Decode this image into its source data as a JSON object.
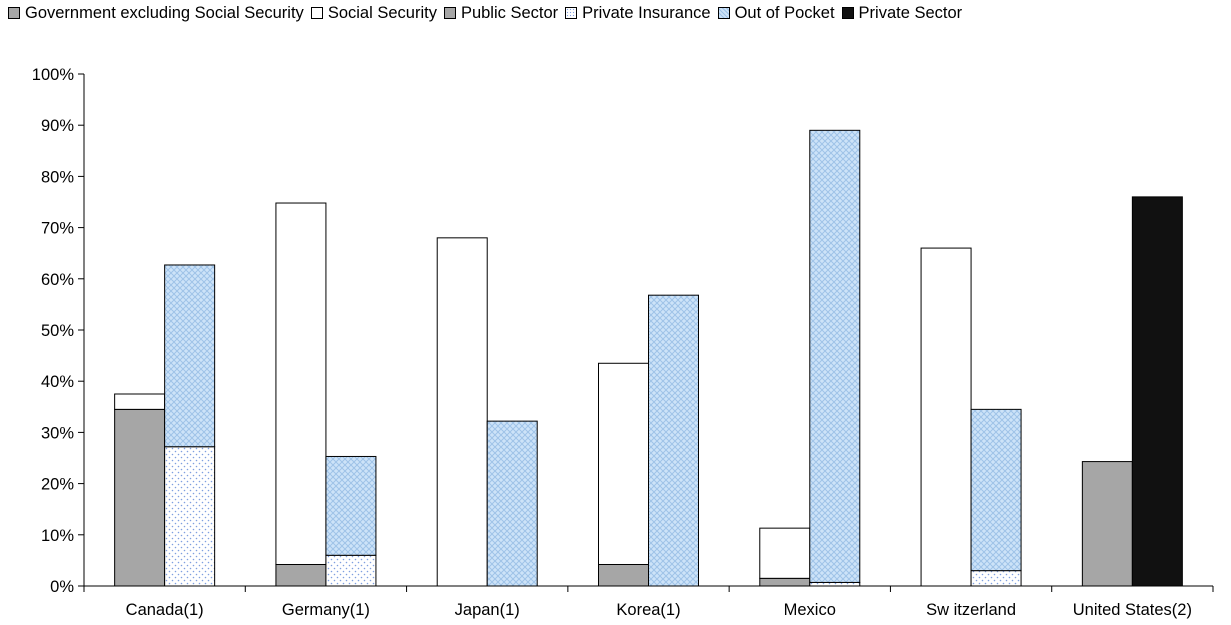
{
  "chart_data": {
    "type": "bar",
    "categories": [
      "Canada(1)",
      "Germany(1)",
      "Japan(1)",
      "Korea(1)",
      "Mexico",
      "Sw itzerland",
      "United States(2)"
    ],
    "ylim": [
      0,
      100
    ],
    "y_ticks": [
      "0%",
      "10%",
      "20%",
      "30%",
      "40%",
      "50%",
      "60%",
      "70%",
      "80%",
      "90%",
      "100%"
    ],
    "grid": false,
    "legend_position": "top",
    "series": [
      {
        "name": "Government excluding Social Security",
        "stack": "public",
        "color": "#a6a6a6",
        "pattern": "solid",
        "values": [
          34.5,
          0,
          0,
          0,
          0,
          0,
          0
        ]
      },
      {
        "name": "Social Security",
        "stack": "public",
        "color": "#ffffff",
        "pattern": "solid",
        "values": [
          3.0,
          4.2,
          68.0,
          4.2,
          1.5,
          66.0,
          0
        ]
      },
      {
        "name": "Public Sector",
        "stack": "public",
        "color": "#a6a6a6",
        "pattern": "solid",
        "values": [
          0,
          0,
          0,
          0,
          0,
          0,
          24.3
        ]
      },
      {
        "name": "Private Insurance",
        "stack": "private",
        "color": "#ffffff",
        "pattern": "dots",
        "values": [
          27.2,
          6.0,
          0,
          0,
          0.7,
          3.0,
          0
        ]
      },
      {
        "name": "Out of Pocket",
        "stack": "private",
        "color": "#cde3f8",
        "pattern": "crosshatch",
        "values": [
          35.5,
          19.3,
          32.2,
          56.8,
          88.3,
          31.5,
          0
        ]
      },
      {
        "name": "Private Sector",
        "stack": "private",
        "color": "#111111",
        "pattern": "solid",
        "values": [
          0,
          0,
          0,
          0,
          0,
          0,
          76.0
        ]
      }
    ],
    "bar_order_note_values": {
      "social_security_segment_layout": "Germany, Korea and Mexico show a small grey base under the white Social Security bar",
      "small_grey_base_values": [
        0,
        4.2,
        0,
        4.2,
        1.5,
        0,
        0
      ],
      "social_security_top_values": [
        37.5,
        74.8,
        68.0,
        43.5,
        11.3,
        66.0,
        0
      ]
    }
  }
}
